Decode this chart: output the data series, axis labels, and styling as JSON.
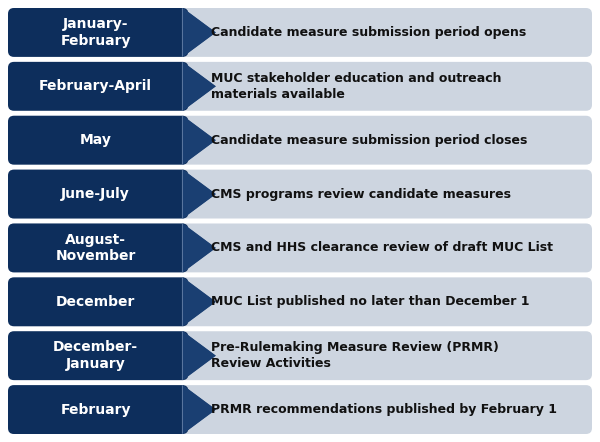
{
  "rows": [
    {
      "label": "January-\nFebruary",
      "description": "Candidate measure submission period opens"
    },
    {
      "label": "February-April",
      "description": "MUC stakeholder education and outreach\nmaterials available"
    },
    {
      "label": "May",
      "description": "Candidate measure submission period closes"
    },
    {
      "label": "June-July",
      "description": "CMS programs review candidate measures"
    },
    {
      "label": "August-\nNovember",
      "description": "CMS and HHS clearance review of draft MUC List"
    },
    {
      "label": "December",
      "description": "MUC List published no later than December 1"
    },
    {
      "label": "December-\nJanuary",
      "description": "Pre-Rulemaking Measure Review (PRMR)\nReview Activities"
    },
    {
      "label": "February",
      "description": "PRMR recommendations published by February 1"
    }
  ],
  "dark_blue": "#0d2e5c",
  "light_gray_row": "#cdd5e0",
  "label_text_color": "#ffffff",
  "desc_text_color": "#111111",
  "bg_color": "#ffffff",
  "chevron_colors": [
    "#1a3f72",
    "#3a5a8a",
    "#8098b8"
  ],
  "chevron_offsets": [
    0.0,
    0.022,
    0.042
  ]
}
